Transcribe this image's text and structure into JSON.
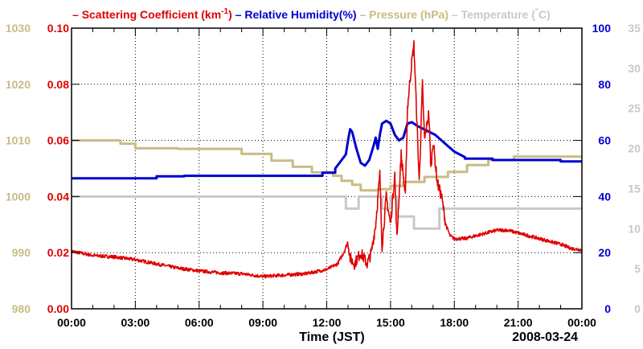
{
  "chart_data": {
    "type": "line",
    "title_parts": [
      {
        "marker": "–",
        "text": "Scattering Coefficient (km",
        "sup": "-1",
        "after": ")",
        "color": "#e00000"
      },
      {
        "marker": "–",
        "text": "Relative Humidity(%)",
        "color": "#0000d0"
      },
      {
        "marker": "–",
        "text": "Pressure (hPa)",
        "color": "#c8bc82"
      },
      {
        "marker": "–",
        "text": "Temperature (",
        "deg": "°",
        "after": "C)",
        "color": "#c8c8c8"
      }
    ],
    "xlabel": "Time (JST)",
    "date_label": "2008-03-24",
    "x_range": [
      0,
      24
    ],
    "x_ticks": [
      {
        "v": 0,
        "label": "00:00"
      },
      {
        "v": 3,
        "label": "03:00"
      },
      {
        "v": 6,
        "label": "06:00"
      },
      {
        "v": 9,
        "label": "09:00"
      },
      {
        "v": 12,
        "label": "12:00"
      },
      {
        "v": 15,
        "label": "15:00"
      },
      {
        "v": 18,
        "label": "18:00"
      },
      {
        "v": 21,
        "label": "21:00"
      },
      {
        "v": 24,
        "label": "00:00"
      }
    ],
    "grid": true,
    "axes": {
      "pressure": {
        "range": [
          980,
          1030
        ],
        "ticks": [
          "980",
          "990",
          "1000",
          "1010",
          "1020",
          "1030"
        ],
        "color": "#c8bc82"
      },
      "scattering": {
        "range": [
          0,
          0.1
        ],
        "ticks": [
          "0.00",
          "0.02",
          "0.04",
          "0.06",
          "0.08",
          "0.10"
        ],
        "color": "#e00000"
      },
      "humidity": {
        "range": [
          0,
          100
        ],
        "ticks": [
          "0",
          "20",
          "40",
          "60",
          "80",
          "100"
        ],
        "color": "#0000d0"
      },
      "temperature": {
        "range": [
          0,
          35
        ],
        "ticks": [
          "0",
          "5",
          "10",
          "15",
          "20",
          "25",
          "30",
          "35"
        ],
        "color": "#c8c8c8"
      }
    },
    "series": [
      {
        "name": "Temperature",
        "axis": "temperature",
        "color": "#c8c8c8",
        "step": true,
        "points": [
          [
            0,
            14
          ],
          [
            12.9,
            14
          ],
          [
            12.9,
            12.5
          ],
          [
            13.5,
            12.5
          ],
          [
            13.5,
            14
          ],
          [
            14.6,
            14
          ],
          [
            14.6,
            12.5
          ],
          [
            15.0,
            12.5
          ],
          [
            15.0,
            14
          ],
          [
            15.3,
            14
          ],
          [
            15.3,
            11.5
          ],
          [
            16.1,
            11.5
          ],
          [
            16.1,
            10
          ],
          [
            17.3,
            10
          ],
          [
            17.3,
            12.5
          ],
          [
            21.0,
            12.5
          ],
          [
            21.0,
            12.5
          ],
          [
            24,
            12.5
          ]
        ]
      },
      {
        "name": "Pressure",
        "axis": "pressure",
        "color": "#c8bc82",
        "step": true,
        "points": [
          [
            0,
            1010
          ],
          [
            2.3,
            1010
          ],
          [
            2.3,
            1009.4
          ],
          [
            3.0,
            1009.4
          ],
          [
            3.0,
            1008.6
          ],
          [
            5.0,
            1008.6
          ],
          [
            5.0,
            1008.5
          ],
          [
            8.0,
            1008.5
          ],
          [
            8.0,
            1007.6
          ],
          [
            9.4,
            1007.6
          ],
          [
            9.4,
            1006.4
          ],
          [
            10.4,
            1006.4
          ],
          [
            10.4,
            1005.3
          ],
          [
            11.3,
            1005.3
          ],
          [
            11.3,
            1004.3
          ],
          [
            12.3,
            1004.3
          ],
          [
            12.3,
            1003.7
          ],
          [
            12.7,
            1003.7
          ],
          [
            12.7,
            1002.8
          ],
          [
            13.2,
            1002.8
          ],
          [
            13.2,
            1002.1
          ],
          [
            13.6,
            1002.1
          ],
          [
            13.6,
            1001.1
          ],
          [
            14.4,
            1001.1
          ],
          [
            14.4,
            1001.3
          ],
          [
            15.0,
            1001.3
          ],
          [
            15.0,
            1001.9
          ],
          [
            15.6,
            1001.9
          ],
          [
            15.6,
            1002.6
          ],
          [
            16.6,
            1002.6
          ],
          [
            16.6,
            1003.5
          ],
          [
            17.7,
            1003.5
          ],
          [
            17.7,
            1004.4
          ],
          [
            18.6,
            1004.4
          ],
          [
            18.6,
            1005.6
          ],
          [
            19.6,
            1005.6
          ],
          [
            19.6,
            1006.5
          ],
          [
            20.8,
            1006.5
          ],
          [
            20.8,
            1007.1
          ],
          [
            24,
            1007.1
          ]
        ]
      },
      {
        "name": "Relative Humidity",
        "axis": "humidity",
        "color": "#0000d0",
        "step": true,
        "points": [
          [
            0,
            46.5
          ],
          [
            4.0,
            46.5
          ],
          [
            4.0,
            47.2
          ],
          [
            5.3,
            47.2
          ],
          [
            5.3,
            47.4
          ],
          [
            11.8,
            47.4
          ],
          [
            11.8,
            48.5
          ],
          [
            12.4,
            48.5
          ],
          [
            12.4,
            50
          ],
          [
            12.6,
            52
          ],
          [
            12.9,
            55
          ],
          [
            13.0,
            60
          ],
          [
            13.1,
            64
          ],
          [
            13.2,
            63
          ],
          [
            13.4,
            57
          ],
          [
            13.6,
            52
          ],
          [
            13.8,
            51
          ],
          [
            14.0,
            53
          ],
          [
            14.2,
            58
          ],
          [
            14.3,
            61
          ],
          [
            14.4,
            57
          ],
          [
            14.5,
            62
          ],
          [
            14.6,
            66
          ],
          [
            14.8,
            67
          ],
          [
            15.0,
            66
          ],
          [
            15.2,
            62
          ],
          [
            15.4,
            60
          ],
          [
            15.6,
            61
          ],
          [
            15.8,
            66
          ],
          [
            16.0,
            66.5
          ],
          [
            16.3,
            65
          ],
          [
            16.7,
            63.5
          ],
          [
            17.1,
            62
          ],
          [
            17.4,
            60
          ],
          [
            17.7,
            58
          ],
          [
            18.0,
            56
          ],
          [
            18.5,
            54
          ],
          [
            18.5,
            53.5
          ],
          [
            19.8,
            53.5
          ],
          [
            19.8,
            53
          ],
          [
            23.0,
            53
          ],
          [
            23.0,
            52.5
          ],
          [
            24,
            52.5
          ]
        ]
      },
      {
        "name": "Scattering Coefficient",
        "axis": "scattering",
        "color": "#e00000",
        "step": false,
        "noisy": true,
        "points": [
          [
            0,
            0.0205
          ],
          [
            1.0,
            0.019
          ],
          [
            2.0,
            0.0185
          ],
          [
            3.0,
            0.0175
          ],
          [
            4.0,
            0.016
          ],
          [
            5.0,
            0.0145
          ],
          [
            6.0,
            0.0135
          ],
          [
            7.0,
            0.0128
          ],
          [
            8.0,
            0.0125
          ],
          [
            9.0,
            0.0115
          ],
          [
            10.0,
            0.012
          ],
          [
            11.0,
            0.0125
          ],
          [
            12.0,
            0.014
          ],
          [
            12.5,
            0.016
          ],
          [
            12.8,
            0.02
          ],
          [
            13.0,
            0.024
          ],
          [
            13.1,
            0.018
          ],
          [
            13.3,
            0.016
          ],
          [
            13.6,
            0.02
          ],
          [
            13.9,
            0.016
          ],
          [
            14.1,
            0.02
          ],
          [
            14.3,
            0.03
          ],
          [
            14.5,
            0.048
          ],
          [
            14.6,
            0.022
          ],
          [
            14.8,
            0.04
          ],
          [
            15.0,
            0.03
          ],
          [
            15.2,
            0.048
          ],
          [
            15.3,
            0.025
          ],
          [
            15.5,
            0.055
          ],
          [
            15.7,
            0.04
          ],
          [
            15.8,
            0.072
          ],
          [
            16.0,
            0.088
          ],
          [
            16.1,
            0.094
          ],
          [
            16.2,
            0.075
          ],
          [
            16.35,
            0.045
          ],
          [
            16.5,
            0.08
          ],
          [
            16.6,
            0.06
          ],
          [
            16.8,
            0.07
          ],
          [
            16.9,
            0.05
          ],
          [
            17.0,
            0.06
          ],
          [
            17.2,
            0.045
          ],
          [
            17.4,
            0.04
          ],
          [
            17.6,
            0.03
          ],
          [
            17.8,
            0.026
          ],
          [
            18.0,
            0.025
          ],
          [
            18.5,
            0.025
          ],
          [
            19.0,
            0.026
          ],
          [
            19.5,
            0.027
          ],
          [
            20.0,
            0.028
          ],
          [
            20.5,
            0.028
          ],
          [
            21.0,
            0.027
          ],
          [
            21.5,
            0.026
          ],
          [
            22.0,
            0.025
          ],
          [
            22.5,
            0.024
          ],
          [
            23.0,
            0.023
          ],
          [
            23.5,
            0.0215
          ],
          [
            24,
            0.021
          ]
        ]
      }
    ]
  }
}
